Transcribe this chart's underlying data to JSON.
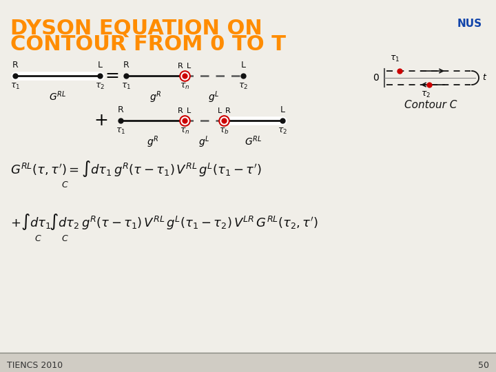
{
  "title_line1": "DYSON EQUATION ON",
  "title_line2": "CONTOUR FROM 0 TO T",
  "title_color": "#FF8C00",
  "title_fontsize": 22,
  "bg_color": "#F0EEE8",
  "footer_text": "TIENCS 2010",
  "footer_page": "50",
  "footer_fontsize": 9,
  "contour_label": "Contour C",
  "red_dot_color": "#CC0000",
  "black_dot_color": "#111111",
  "line_color_solid": "#111111",
  "line_color_dashed": "#555555",
  "footer_bg": "#D0CCC4",
  "nus_color": "#1144AA"
}
